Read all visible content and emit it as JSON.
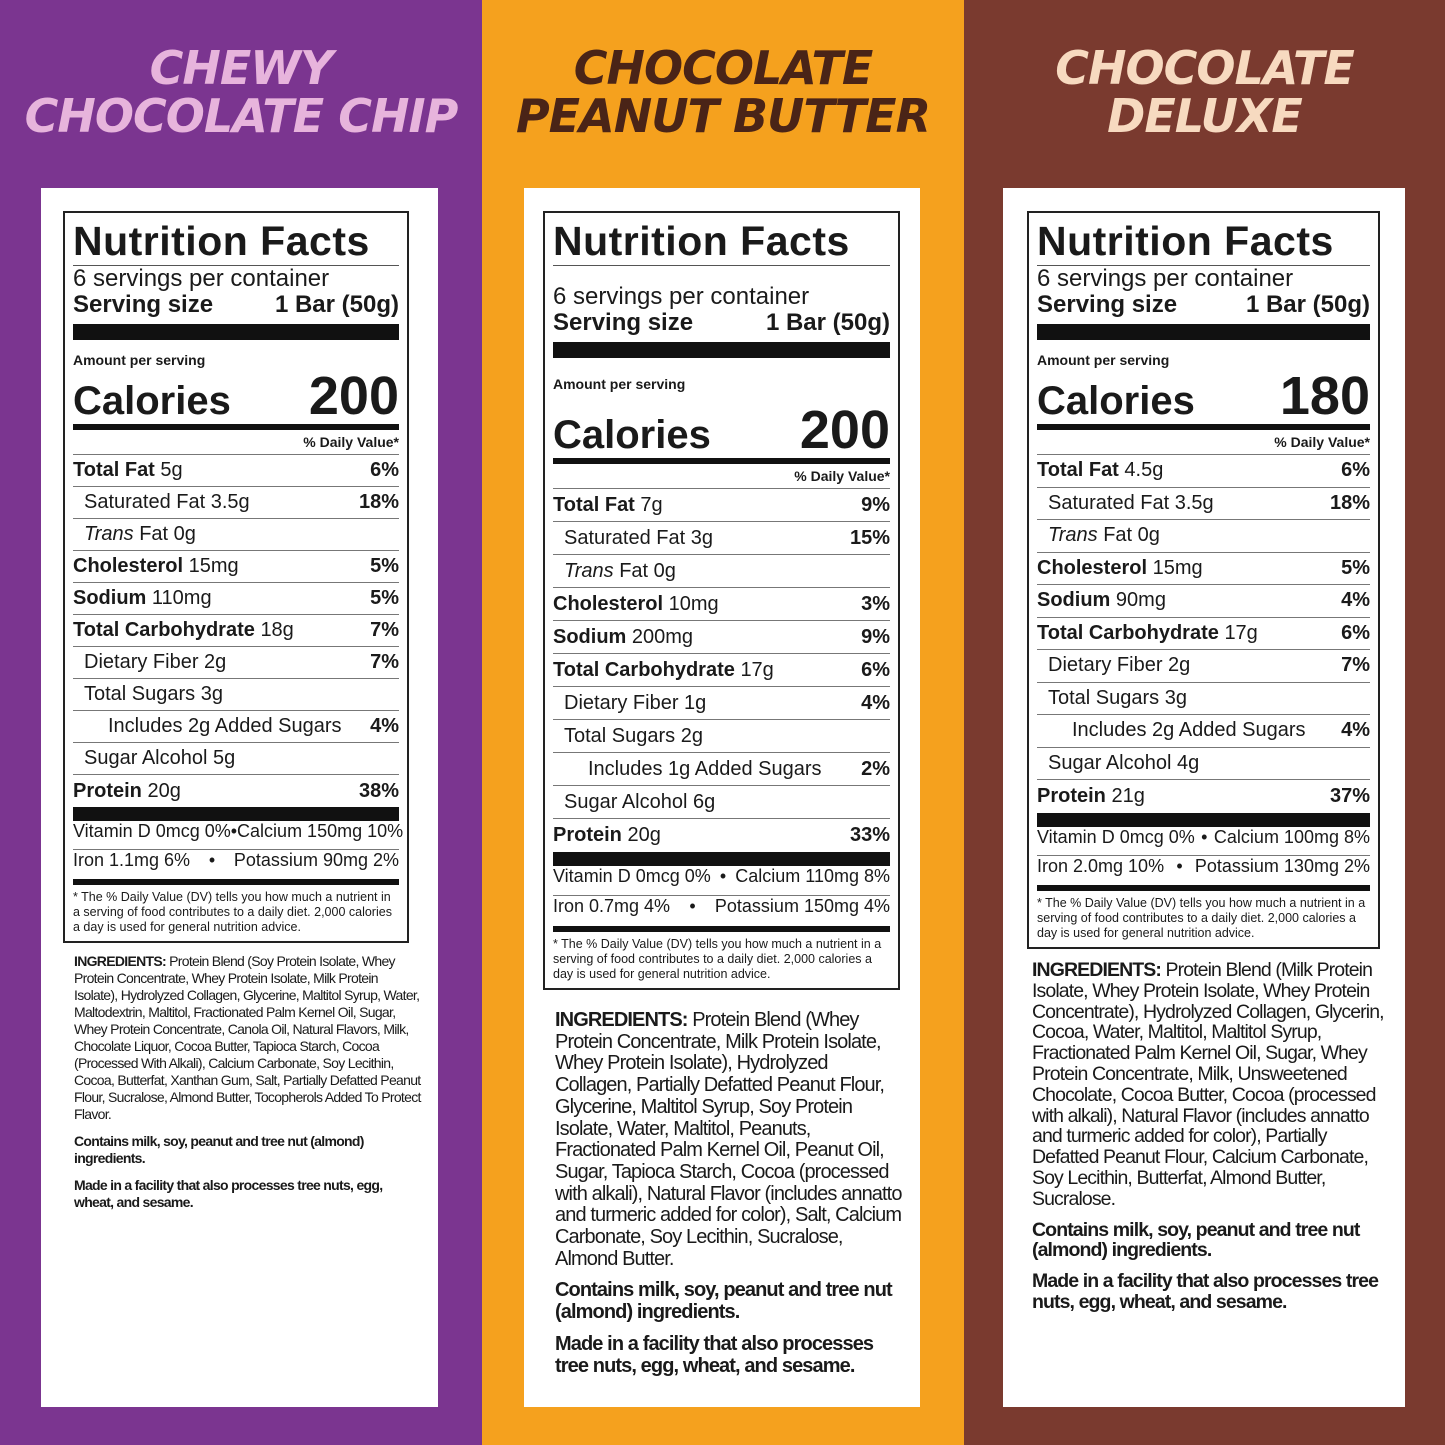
{
  "panels": [
    {
      "flavor": [
        "CHEWY",
        "CHOCOLATE CHIP"
      ],
      "bg_color": "#7B3590",
      "label": {
        "title": "Nutrition Facts",
        "servings": "6 servings per container",
        "serving_size_label": "Serving size",
        "serving_size_value": "1 Bar (50g)",
        "amount_per_serving": "Amount per serving",
        "calories_label": "Calories",
        "calories_value": "200",
        "dv_header": "% Daily Value*",
        "rows": [
          {
            "bold": "Total Fat",
            "italic": "",
            "label": "5g",
            "dv": "6%",
            "level": 0
          },
          {
            "bold": "",
            "italic": "",
            "label": "Saturated Fat 3.5g",
            "dv": "18%",
            "level": 1
          },
          {
            "bold": "",
            "italic": "Trans",
            "label": "Fat 0g",
            "dv": "",
            "level": 1
          },
          {
            "bold": "Cholesterol",
            "italic": "",
            "label": "15mg",
            "dv": "5%",
            "level": 0
          },
          {
            "bold": "Sodium",
            "italic": "",
            "label": "110mg",
            "dv": "5%",
            "level": 0
          },
          {
            "bold": "Total Carbohydrate",
            "italic": "",
            "label": "18g",
            "dv": "7%",
            "level": 0
          },
          {
            "bold": "",
            "italic": "",
            "label": "Dietary Fiber 2g",
            "dv": "7%",
            "level": 1
          },
          {
            "bold": "",
            "italic": "",
            "label": "Total Sugars 3g",
            "dv": "",
            "level": 1
          },
          {
            "bold": "",
            "italic": "",
            "label": "Includes 2g Added Sugars",
            "dv": "4%",
            "level": 2
          },
          {
            "bold": "",
            "italic": "",
            "label": "Sugar Alcohol 5g",
            "dv": "",
            "level": 1
          },
          {
            "bold": "Protein",
            "italic": "",
            "label": "20g",
            "dv": "38%",
            "level": 0
          }
        ],
        "vitamins": [
          [
            "Vitamin D 0mcg 0%",
            "•",
            "Calcium 150mg 10%"
          ],
          [
            "Iron 1.1mg 6%",
            "•",
            "Potassium 90mg 2%"
          ]
        ],
        "footnote": "* The % Daily Value (DV) tells you how much a nutrient in a serving of food contributes to a daily diet. 2,000 calories a day is used for general nutrition advice."
      },
      "ingredients_heading": "INGREDIENTS:",
      "ingredients": "Protein Blend (Soy Protein Isolate, Whey Protein Concentrate, Whey Protein Isolate, Milk Protein Isolate), Hydrolyzed Collagen, Glycerine, Maltitol Syrup, Water, Maltodextrin, Maltitol, Fractionated Palm Kernel Oil, Sugar, Whey Protein Concentrate, Canola Oil, Natural Flavors, Milk, Chocolate Liquor, Cocoa Butter, Tapioca Starch, Cocoa (Processed With Alkali), Calcium Carbonate, Soy Lecithin, Cocoa, Butterfat, Xanthan Gum, Salt, Partially Defatted Peanut Flour, Sucralose, Almond Butter, Tocopherols Added To Protect Flavor.",
      "allergens": "Contains milk, soy, peanut and tree nut (almond) ingredients.",
      "facility": "Made in a facility that also processes tree nuts, egg, wheat, and sesame."
    },
    {
      "flavor": [
        "CHOCOLATE",
        "PEANUT BUTTER"
      ],
      "bg_color": "#F5A11E",
      "label": {
        "title": "Nutrition Facts",
        "servings": "6 servings per container",
        "serving_size_label": "Serving size",
        "serving_size_value": "1 Bar (50g)",
        "amount_per_serving": "Amount per serving",
        "calories_label": "Calories",
        "calories_value": "200",
        "dv_header": "% Daily Value*",
        "rows": [
          {
            "bold": "Total Fat",
            "italic": "",
            "label": "7g",
            "dv": "9%",
            "level": 0
          },
          {
            "bold": "",
            "italic": "",
            "label": "Saturated Fat 3g",
            "dv": "15%",
            "level": 1
          },
          {
            "bold": "",
            "italic": "Trans",
            "label": "Fat 0g",
            "dv": "",
            "level": 1
          },
          {
            "bold": "Cholesterol",
            "italic": "",
            "label": "10mg",
            "dv": "3%",
            "level": 0
          },
          {
            "bold": "Sodium",
            "italic": "",
            "label": "200mg",
            "dv": "9%",
            "level": 0
          },
          {
            "bold": "Total Carbohydrate",
            "italic": "",
            "label": "17g",
            "dv": "6%",
            "level": 0
          },
          {
            "bold": "",
            "italic": "",
            "label": "Dietary Fiber 1g",
            "dv": "4%",
            "level": 1
          },
          {
            "bold": "",
            "italic": "",
            "label": "Total Sugars 2g",
            "dv": "",
            "level": 1
          },
          {
            "bold": "",
            "italic": "",
            "label": "Includes 1g Added Sugars",
            "dv": "2%",
            "level": 2
          },
          {
            "bold": "",
            "italic": "",
            "label": "Sugar Alcohol 6g",
            "dv": "",
            "level": 1
          },
          {
            "bold": "Protein",
            "italic": "",
            "label": "20g",
            "dv": "33%",
            "level": 0
          }
        ],
        "vitamins": [
          [
            "Vitamin D 0mcg 0%",
            "•",
            "Calcium 110mg 8%"
          ],
          [
            "Iron 0.7mg 4%",
            "•",
            "Potassium 150mg 4%"
          ]
        ],
        "footnote": "* The % Daily Value (DV) tells you how much a nutrient in a serving of food contributes to a daily diet. 2,000 calories a day is used for general nutrition advice."
      },
      "ingredients_heading": "INGREDIENTS:",
      "ingredients": "Protein Blend (Whey Protein Concentrate, Milk Protein Isolate, Whey Protein Isolate), Hydrolyzed Collagen, Partially Defatted Peanut Flour, Glycerine, Maltitol Syrup, Soy Protein Isolate, Water, Maltitol, Peanuts, Fractionated Palm Kernel Oil, Peanut Oil, Sugar, Tapioca Starch, Cocoa (processed with alkali), Natural Flavor (includes annatto and turmeric added for color), Salt, Calcium Carbonate, Soy Lecithin, Sucralose, Almond Butter.",
      "allergens": "Contains milk, soy, peanut and tree nut (almond) ingredients.",
      "facility": "Made in a facility that also processes tree nuts, egg, wheat, and sesame."
    },
    {
      "flavor": [
        "CHOCOLATE",
        "DELUXE"
      ],
      "bg_color": "#7A3A2F",
      "label": {
        "title": "Nutrition Facts",
        "servings": "6 servings per container",
        "serving_size_label": "Serving size",
        "serving_size_value": "1 Bar (50g)",
        "amount_per_serving": "Amount per serving",
        "calories_label": "Calories",
        "calories_value": "180",
        "dv_header": "% Daily Value*",
        "rows": [
          {
            "bold": "Total Fat",
            "italic": "",
            "label": "4.5g",
            "dv": "6%",
            "level": 0
          },
          {
            "bold": "",
            "italic": "",
            "label": "Saturated Fat 3.5g",
            "dv": "18%",
            "level": 1
          },
          {
            "bold": "",
            "italic": "Trans",
            "label": "Fat 0g",
            "dv": "",
            "level": 1
          },
          {
            "bold": "Cholesterol",
            "italic": "",
            "label": "15mg",
            "dv": "5%",
            "level": 0
          },
          {
            "bold": "Sodium",
            "italic": "",
            "label": "90mg",
            "dv": "4%",
            "level": 0
          },
          {
            "bold": "Total Carbohydrate",
            "italic": "",
            "label": "17g",
            "dv": "6%",
            "level": 0
          },
          {
            "bold": "",
            "italic": "",
            "label": "Dietary Fiber 2g",
            "dv": "7%",
            "level": 1
          },
          {
            "bold": "",
            "italic": "",
            "label": "Total Sugars 3g",
            "dv": "",
            "level": 1
          },
          {
            "bold": "",
            "italic": "",
            "label": "Includes 2g Added Sugars",
            "dv": "4%",
            "level": 2
          },
          {
            "bold": "",
            "italic": "",
            "label": "Sugar Alcohol 4g",
            "dv": "",
            "level": 1
          },
          {
            "bold": "Protein",
            "italic": "",
            "label": "21g",
            "dv": "37%",
            "level": 0
          }
        ],
        "vitamins": [
          [
            "Vitamin D 0mcg 0%",
            "•",
            "Calcium 100mg 8%"
          ],
          [
            "Iron 2.0mg 10%",
            "•",
            "Potassium 130mg 2%"
          ]
        ],
        "footnote": "* The % Daily Value (DV) tells you how much a nutrient in a serving of food contributes to a daily diet. 2,000 calories a day is used for general nutrition advice."
      },
      "ingredients_heading": "INGREDIENTS:",
      "ingredients": "Protein Blend (Milk Protein Isolate, Whey Protein Isolate, Whey Protein Concentrate), Hydrolyzed Collagen, Glycerin, Cocoa, Water, Maltitol, Maltitol Syrup, Fractionated Palm Kernel Oil, Sugar, Whey Protein Concentrate, Milk, Unsweetened Chocolate, Cocoa Butter, Cocoa (processed with alkali), Natural Flavor (includes annatto and turmeric added for color), Partially Defatted Peanut Flour, Calcium Carbonate, Soy Lecithin, Butterfat, Almond Butter, Sucralose.",
      "allergens": "Contains milk, soy, peanut and tree nut (almond) ingredients.",
      "facility": "Made in a facility that also processes tree nuts, egg, wheat, and sesame."
    }
  ]
}
